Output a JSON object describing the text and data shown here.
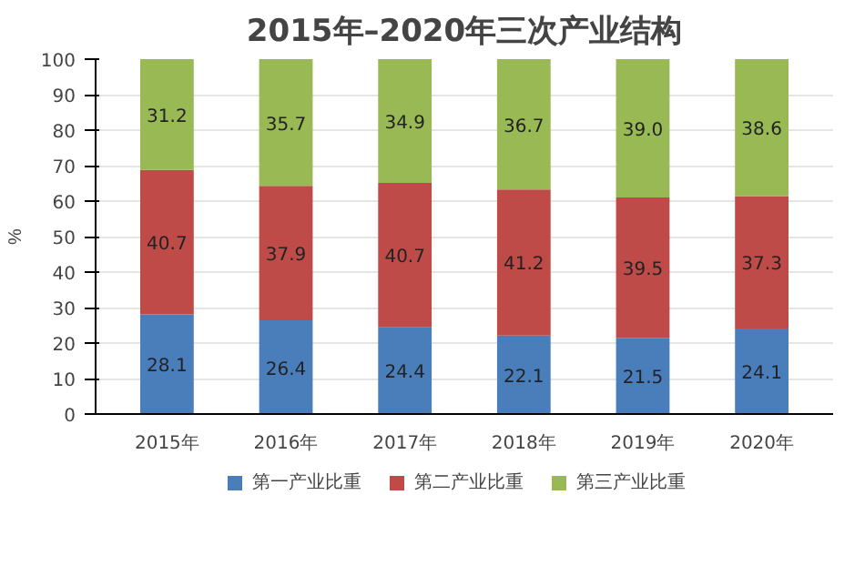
{
  "chart_data": {
    "type": "bar",
    "stacked": true,
    "title": "2015年–2020年三次产业结构",
    "ylabel": "%",
    "categories": [
      "2015年",
      "2016年",
      "2017年",
      "2018年",
      "2019年",
      "2020年"
    ],
    "series": [
      {
        "name": "第一产业比重",
        "color": "#4a7ebb",
        "values": [
          28.1,
          26.4,
          24.4,
          22.1,
          21.5,
          24.1
        ],
        "value_labels": [
          "28.1",
          "26.4",
          "24.4",
          "22.1",
          "21.5",
          "24.1"
        ]
      },
      {
        "name": "第二产业比重",
        "color": "#be4b48",
        "values": [
          40.7,
          37.9,
          40.7,
          41.2,
          39.5,
          37.3
        ],
        "value_labels": [
          "40.7",
          "37.9",
          "40.7",
          "41.2",
          "39.5",
          "37.3"
        ]
      },
      {
        "name": "第三产业比重",
        "color": "#98b954",
        "values": [
          31.2,
          35.7,
          34.9,
          36.7,
          39.0,
          38.6
        ],
        "value_labels": [
          "31.2",
          "35.7",
          "34.9",
          "36.7",
          "39.0",
          "38.6"
        ]
      }
    ],
    "ylim": [
      0,
      100
    ],
    "yticks": [
      0,
      10,
      20,
      30,
      40,
      50,
      60,
      70,
      80,
      90,
      100
    ],
    "grid": "y",
    "legend": "bottom"
  }
}
